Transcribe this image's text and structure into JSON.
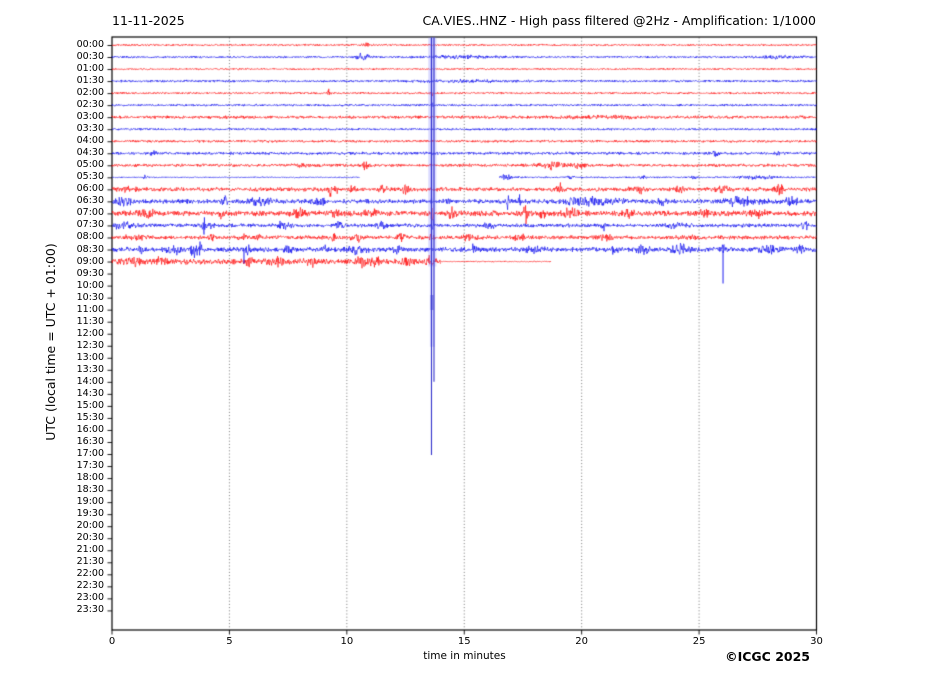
{
  "header": {
    "date_label": "11-11-2025",
    "title": "CA.VIES..HNZ - High pass filtered @2Hz - Amplification: 1/1000"
  },
  "footer": {
    "copyright": "©ICGC 2025"
  },
  "chart_data": {
    "type": "line",
    "subtype": "helicorder-seismogram",
    "title": "CA.VIES..HNZ - High pass filtered @2Hz - Amplification: 1/1000",
    "date": "11-11-2025",
    "xlabel": "time in minutes",
    "ylabel": "UTC (local time = UTC + 01:00)",
    "xlim": [
      0,
      30
    ],
    "x_tick_values": [
      0,
      5,
      10,
      15,
      20,
      25,
      30
    ],
    "x_tick_labels": [
      "0",
      "5",
      "10",
      "15",
      "20",
      "25",
      "30"
    ],
    "grid_minutes": [
      5,
      10,
      15,
      20,
      25
    ],
    "grid_style": "vertical-dotted",
    "row_spacing_minutes": 30,
    "colors": {
      "red": "#ff0000",
      "blue": "#0000ee",
      "event": "#3333cc"
    },
    "rows": [
      {
        "label": "00:00",
        "color": "red",
        "segments": [
          [
            0,
            30,
            0.6
          ]
        ],
        "events": [
          [
            10.8,
            1.0,
            0.15
          ]
        ]
      },
      {
        "label": "00:30",
        "color": "blue",
        "segments": [
          [
            0,
            30,
            0.6
          ]
        ],
        "events": [
          [
            10.7,
            2.2,
            0.3
          ],
          [
            14.8,
            0.9,
            1.5
          ],
          [
            28.5,
            0.7,
            1.0
          ]
        ]
      },
      {
        "label": "01:00",
        "color": "red",
        "segments": [
          [
            0,
            30,
            0.55
          ]
        ],
        "events": []
      },
      {
        "label": "01:30",
        "color": "blue",
        "segments": [
          [
            0,
            30,
            0.7
          ]
        ],
        "events": [
          [
            15.0,
            0.5,
            2.0
          ]
        ]
      },
      {
        "label": "02:00",
        "color": "red",
        "segments": [
          [
            0,
            30,
            0.6
          ]
        ],
        "events": [
          [
            9.25,
            2.5,
            0.06
          ],
          [
            13.63,
            3.5,
            0.05
          ]
        ]
      },
      {
        "label": "02:30",
        "color": "blue",
        "segments": [
          [
            0,
            30,
            0.65
          ]
        ],
        "events": [
          [
            13.63,
            2.0,
            0.05
          ]
        ]
      },
      {
        "label": "03:00",
        "color": "red",
        "segments": [
          [
            0,
            30,
            0.9
          ]
        ],
        "events": [
          [
            21.0,
            0.6,
            2.0
          ]
        ]
      },
      {
        "label": "03:30",
        "color": "blue",
        "segments": [
          [
            0,
            30,
            0.65
          ]
        ],
        "events": [
          [
            13.63,
            1.2,
            0.05
          ]
        ]
      },
      {
        "label": "04:00",
        "color": "red",
        "segments": [
          [
            0,
            30,
            0.75
          ]
        ],
        "events": []
      },
      {
        "label": "04:30",
        "color": "blue",
        "segments": [
          [
            0,
            30,
            0.85
          ]
        ],
        "events": [
          [
            1.75,
            1.2,
            0.1
          ],
          [
            13.63,
            1.2,
            0.05
          ],
          [
            25.7,
            1.3,
            0.15
          ],
          [
            28.4,
            1.2,
            0.1
          ]
        ]
      },
      {
        "label": "05:00",
        "color": "red",
        "segments": [
          [
            0,
            30,
            0.9
          ]
        ],
        "events": [
          [
            8.1,
            1.0,
            0.2
          ],
          [
            10.8,
            2.0,
            0.15
          ],
          [
            18.7,
            1.8,
            0.5
          ],
          [
            19.9,
            1.5,
            0.3
          ]
        ]
      },
      {
        "label": "05:30",
        "color": "blue",
        "segments": [
          [
            0,
            10.55,
            0.35
          ],
          [
            16.5,
            30,
            0.5
          ]
        ],
        "events": [
          [
            1.4,
            1.2,
            0.1
          ],
          [
            16.75,
            1.8,
            0.25
          ],
          [
            19.5,
            0.8,
            0.15
          ],
          [
            22.6,
            1.3,
            0.12
          ],
          [
            24.8,
            1.0,
            0.12
          ],
          [
            27.5,
            0.9,
            0.8
          ]
        ]
      },
      {
        "label": "06:00",
        "color": "red",
        "segments": [
          [
            0,
            30,
            1.2
          ]
        ],
        "events": [
          [
            0.6,
            1.2,
            0.4
          ],
          [
            9.3,
            3.5,
            0.08
          ],
          [
            9.55,
            3.0,
            0.06
          ],
          [
            10.2,
            1.8,
            0.15
          ],
          [
            11.5,
            2.0,
            0.2
          ],
          [
            12.5,
            2.2,
            0.15
          ],
          [
            19.1,
            2.8,
            0.15
          ],
          [
            22.4,
            2.2,
            0.3
          ],
          [
            24.2,
            1.5,
            0.2
          ],
          [
            26.0,
            1.8,
            0.25
          ],
          [
            28.4,
            2.2,
            0.2
          ]
        ]
      },
      {
        "label": "06:30",
        "color": "blue",
        "segments": [
          [
            0,
            30,
            1.3
          ]
        ],
        "events": [
          [
            0.4,
            2.2,
            0.4
          ],
          [
            4.8,
            3.5,
            0.1
          ],
          [
            6.3,
            2.0,
            0.5
          ],
          [
            8.8,
            1.8,
            0.3
          ],
          [
            13.63,
            1.8,
            0.05
          ],
          [
            14.3,
            2.0,
            0.1
          ],
          [
            16.85,
            3.2,
            0.1
          ],
          [
            17.35,
            3.2,
            0.08
          ],
          [
            20.5,
            1.8,
            1.2
          ],
          [
            23.4,
            2.5,
            0.15
          ],
          [
            26.8,
            2.2,
            0.8
          ],
          [
            28.9,
            2.0,
            0.3
          ]
        ]
      },
      {
        "label": "07:00",
        "color": "red",
        "segments": [
          [
            0,
            30,
            1.6
          ]
        ],
        "events": [
          [
            1.5,
            2.0,
            0.3
          ],
          [
            4.7,
            3.0,
            0.1
          ],
          [
            8.0,
            2.8,
            0.25
          ],
          [
            9.5,
            2.5,
            0.15
          ],
          [
            11.0,
            2.0,
            0.3
          ],
          [
            13.65,
            3.5,
            0.07
          ],
          [
            14.5,
            4.0,
            0.12
          ],
          [
            17.6,
            4.5,
            0.1
          ],
          [
            18.3,
            3.5,
            0.12
          ],
          [
            19.5,
            2.0,
            0.4
          ],
          [
            21.9,
            2.2,
            0.25
          ],
          [
            25.2,
            1.8,
            0.2
          ],
          [
            27.5,
            1.5,
            0.3
          ]
        ]
      },
      {
        "label": "07:30",
        "color": "blue",
        "segments": [
          [
            0,
            30,
            1.1
          ]
        ],
        "events": [
          [
            0.5,
            1.8,
            0.4
          ],
          [
            3.9,
            4.5,
            0.1
          ],
          [
            4.25,
            3.5,
            0.08
          ],
          [
            7.3,
            2.2,
            0.25
          ],
          [
            9.7,
            2.2,
            0.15
          ],
          [
            11.5,
            1.8,
            0.25
          ],
          [
            13.65,
            2.5,
            0.08
          ],
          [
            16.0,
            1.5,
            0.3
          ],
          [
            20.9,
            4.0,
            0.1
          ],
          [
            24.0,
            1.3,
            0.4
          ],
          [
            29.5,
            3.0,
            0.1
          ]
        ]
      },
      {
        "label": "08:00",
        "color": "red",
        "segments": [
          [
            0,
            30,
            1.15
          ]
        ],
        "events": [
          [
            1.0,
            1.5,
            0.4
          ],
          [
            4.2,
            2.0,
            0.12
          ],
          [
            5.6,
            2.2,
            0.15
          ],
          [
            6.2,
            2.0,
            0.1
          ],
          [
            9.4,
            2.8,
            0.1
          ],
          [
            10.5,
            2.2,
            0.25
          ],
          [
            12.3,
            2.0,
            0.2
          ],
          [
            13.6,
            2.3,
            0.08
          ],
          [
            15.2,
            1.5,
            0.3
          ],
          [
            17.3,
            1.5,
            0.3
          ],
          [
            21.0,
            1.4,
            0.3
          ],
          [
            24.5,
            1.3,
            0.3
          ]
        ]
      },
      {
        "label": "08:30",
        "color": "blue",
        "segments": [
          [
            0,
            30,
            1.4
          ]
        ],
        "events": [
          [
            1.2,
            2.0,
            0.12
          ],
          [
            2.7,
            2.5,
            0.3
          ],
          [
            3.5,
            4.5,
            0.12
          ],
          [
            3.75,
            3.5,
            0.08
          ],
          [
            5.8,
            3.0,
            0.1
          ],
          [
            7.5,
            1.8,
            0.2
          ],
          [
            9.0,
            2.2,
            0.12
          ],
          [
            10.4,
            2.0,
            0.4
          ],
          [
            12.2,
            2.5,
            0.2
          ],
          [
            15.4,
            2.5,
            0.1
          ],
          [
            18.0,
            2.0,
            0.3
          ],
          [
            21.4,
            3.5,
            0.15
          ],
          [
            22.6,
            3.0,
            0.25
          ],
          [
            24.2,
            3.5,
            0.3
          ],
          [
            26.0,
            3.0,
            0.1
          ],
          [
            27.9,
            2.2,
            0.4
          ],
          [
            29.3,
            2.0,
            0.2
          ]
        ]
      },
      {
        "label": "09:00",
        "color": "red",
        "segments": [
          [
            0,
            14,
            1.7
          ],
          [
            14,
            18.7,
            0.35
          ]
        ],
        "events": [
          [
            0.9,
            2.2,
            0.4
          ],
          [
            2.0,
            1.8,
            0.3
          ],
          [
            5.85,
            4.5,
            0.1
          ],
          [
            7.0,
            1.8,
            0.3
          ],
          [
            8.5,
            2.0,
            0.2
          ],
          [
            10.7,
            2.8,
            0.3
          ],
          [
            11.3,
            2.5,
            0.15
          ],
          [
            12.6,
            2.0,
            0.2
          ],
          [
            13.5,
            2.0,
            0.2
          ]
        ]
      },
      {
        "label": "09:30",
        "color": "blue",
        "segments": [],
        "events": []
      },
      {
        "label": "10:00",
        "color": "red",
        "segments": [],
        "events": []
      },
      {
        "label": "10:30",
        "color": "blue",
        "segments": [],
        "events": []
      },
      {
        "label": "11:00",
        "color": "red",
        "segments": [],
        "events": []
      },
      {
        "label": "11:30",
        "color": "blue",
        "segments": [],
        "events": []
      },
      {
        "label": "12:00",
        "color": "red",
        "segments": [],
        "events": []
      },
      {
        "label": "12:30",
        "color": "blue",
        "segments": [],
        "events": []
      },
      {
        "label": "13:00",
        "color": "red",
        "segments": [],
        "events": []
      },
      {
        "label": "13:30",
        "color": "blue",
        "segments": [],
        "events": []
      },
      {
        "label": "14:00",
        "color": "red",
        "segments": [],
        "events": []
      },
      {
        "label": "14:30",
        "color": "blue",
        "segments": [],
        "events": []
      },
      {
        "label": "15:00",
        "color": "red",
        "segments": [],
        "events": []
      },
      {
        "label": "15:30",
        "color": "blue",
        "segments": [],
        "events": []
      },
      {
        "label": "16:00",
        "color": "red",
        "segments": [],
        "events": []
      },
      {
        "label": "16:30",
        "color": "blue",
        "segments": [],
        "events": []
      },
      {
        "label": "17:00",
        "color": "red",
        "segments": [],
        "events": []
      },
      {
        "label": "17:30",
        "color": "blue",
        "segments": [],
        "events": []
      },
      {
        "label": "18:00",
        "color": "red",
        "segments": [],
        "events": []
      },
      {
        "label": "18:30",
        "color": "blue",
        "segments": [],
        "events": []
      },
      {
        "label": "19:00",
        "color": "red",
        "segments": [],
        "events": []
      },
      {
        "label": "19:30",
        "color": "blue",
        "segments": [],
        "events": []
      },
      {
        "label": "20:00",
        "color": "red",
        "segments": [],
        "events": []
      },
      {
        "label": "20:30",
        "color": "blue",
        "segments": [],
        "events": []
      },
      {
        "label": "21:00",
        "color": "red",
        "segments": [],
        "events": []
      },
      {
        "label": "21:30",
        "color": "blue",
        "segments": [],
        "events": []
      },
      {
        "label": "22:00",
        "color": "red",
        "segments": [],
        "events": []
      },
      {
        "label": "22:30",
        "color": "blue",
        "segments": [],
        "events": []
      },
      {
        "label": "23:00",
        "color": "red",
        "segments": [],
        "events": []
      },
      {
        "label": "23:30",
        "color": "blue",
        "segments": [],
        "events": []
      }
    ],
    "main_event": {
      "minute": 13.63,
      "description": "large clipped event spike overflowing across rows",
      "extends_from_row": "00:00",
      "wide_band_to_row": "12:30",
      "thin_line_to_row": "17:00"
    },
    "down_spikes": [
      {
        "row_label": "08:30",
        "minute": 5.62,
        "length": 14
      },
      {
        "row_label": "08:30",
        "minute": 26.02,
        "length": 34
      }
    ]
  }
}
